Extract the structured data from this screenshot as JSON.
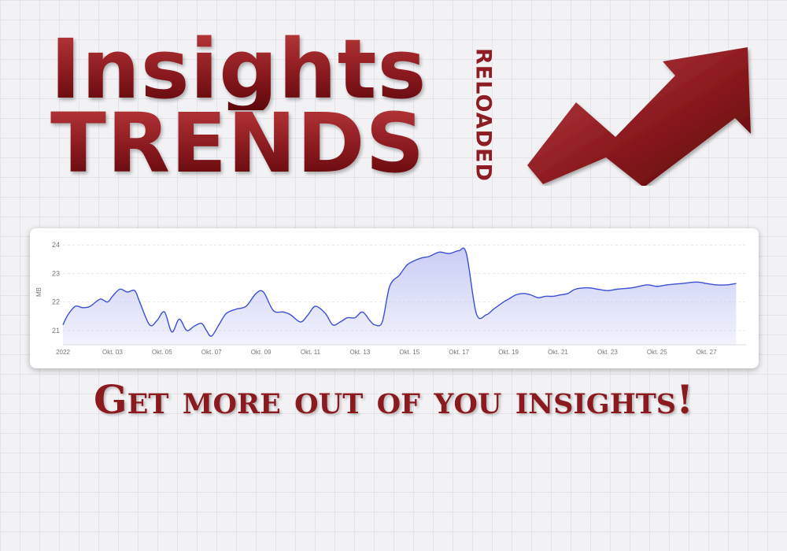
{
  "logo": {
    "line1": "Insights",
    "line2": "TRENDS",
    "vertical": "RELOADED"
  },
  "tagline": "Get more out of you insights!",
  "colors": {
    "brand_dark": "#5e070b",
    "brand": "#8a1a1f",
    "brand_light": "#b8383b",
    "series_line": "#3b4fd6",
    "series_fill": "#c9cdf4"
  },
  "icons": [
    "trend-up-arrow-icon"
  ],
  "chart_data": {
    "type": "area",
    "title": "",
    "xlabel": "",
    "ylabel": "MB",
    "ylim": [
      20.5,
      24.2
    ],
    "yticks": [
      21,
      22,
      23,
      24
    ],
    "xlim": [
      0,
      13.8
    ],
    "xticks": [
      {
        "x": 0,
        "label": "2022"
      },
      {
        "x": 1,
        "label": "Okt. 03"
      },
      {
        "x": 2,
        "label": "Okt. 05"
      },
      {
        "x": 3,
        "label": "Okt. 07"
      },
      {
        "x": 4,
        "label": "Okt. 09"
      },
      {
        "x": 5,
        "label": "Okt. 11"
      },
      {
        "x": 6,
        "label": "Okt. 13"
      },
      {
        "x": 7,
        "label": "Okt. 15"
      },
      {
        "x": 8,
        "label": "Okt. 17"
      },
      {
        "x": 9,
        "label": "Okt. 19"
      },
      {
        "x": 10,
        "label": "Okt. 21"
      },
      {
        "x": 11,
        "label": "Okt. 23"
      },
      {
        "x": 12,
        "label": "Okt. 25"
      },
      {
        "x": 13,
        "label": "Okt. 27"
      }
    ],
    "grid": "horizontal",
    "legend": "none",
    "series": [
      {
        "x": [
          0,
          0.1,
          0.25,
          0.4,
          0.55,
          0.75,
          0.9,
          1.0,
          1.15,
          1.3,
          1.45,
          1.55,
          1.75,
          1.9,
          2.05,
          2.2,
          2.35,
          2.5,
          2.65,
          2.8,
          2.9,
          3.0,
          3.15,
          3.3,
          3.5,
          3.7,
          3.9,
          4.05,
          4.25,
          4.45,
          4.6,
          4.8,
          4.95,
          5.1,
          5.3,
          5.45,
          5.6,
          5.75,
          5.9,
          6.05,
          6.2,
          6.3,
          6.45,
          6.6,
          6.8,
          6.95,
          7.1,
          7.25,
          7.4,
          7.6,
          7.8,
          8.0,
          8.15,
          8.35,
          8.55,
          8.7,
          8.9,
          9.0,
          9.15,
          9.3,
          9.45,
          9.6,
          9.75,
          9.9,
          10.05,
          10.2,
          10.35,
          10.6,
          10.8,
          11.0,
          11.2,
          11.5,
          11.8,
          12.0,
          12.2,
          12.5,
          12.8,
          13.0,
          13.2,
          13.4,
          13.6
        ],
        "y": [
          21.2,
          21.55,
          21.85,
          21.8,
          21.85,
          22.1,
          22.0,
          22.2,
          22.45,
          22.35,
          22.4,
          22.0,
          21.2,
          21.35,
          21.65,
          20.95,
          21.4,
          21.0,
          21.15,
          21.25,
          21.0,
          20.8,
          21.2,
          21.6,
          21.75,
          21.85,
          22.3,
          22.35,
          21.7,
          21.65,
          21.55,
          21.3,
          21.55,
          21.85,
          21.6,
          21.2,
          21.3,
          21.45,
          21.45,
          21.65,
          21.35,
          21.2,
          21.3,
          22.55,
          22.95,
          23.3,
          23.45,
          23.55,
          23.6,
          23.75,
          23.7,
          23.8,
          23.7,
          21.6,
          21.55,
          21.75,
          22.0,
          22.1,
          22.25,
          22.3,
          22.25,
          22.15,
          22.2,
          22.2,
          22.25,
          22.3,
          22.45,
          22.5,
          22.45,
          22.4,
          22.45,
          22.5,
          22.6,
          22.55,
          22.6,
          22.65,
          22.7,
          22.65,
          22.6,
          22.6,
          22.65
        ]
      }
    ]
  }
}
